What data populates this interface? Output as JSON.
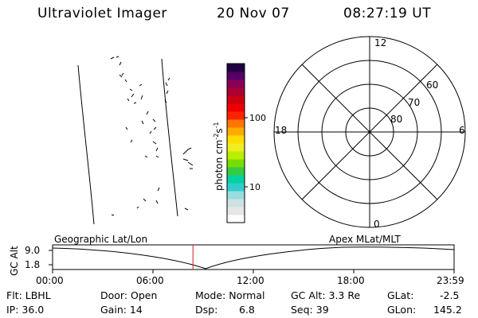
{
  "header": {
    "title": "Ultraviolet Imager",
    "date": "20 Nov 07",
    "time": "08:27:19 UT"
  },
  "colorbar": {
    "label_main": "photon cm",
    "label_exp1": "-2",
    "label_mid": "s",
    "label_exp2": "-1",
    "ticks": [
      "100",
      "10"
    ],
    "colors": [
      "#ffffff",
      "#e6e6e6",
      "#cfe0e0",
      "#99dddd",
      "#33cccc",
      "#00d2a0",
      "#33cc44",
      "#77dd00",
      "#bbee00",
      "#eeee22",
      "#ffdd00",
      "#ffaa00",
      "#ff7700",
      "#ff2200",
      "#ee0000",
      "#cc0011",
      "#aa0033",
      "#880055",
      "#550066",
      "#220044"
    ]
  },
  "polar_plot": {
    "mlt_labels": {
      "top": "12",
      "bottom": "0",
      "left": "18",
      "right": "6"
    },
    "lat_labels": [
      "60",
      "70",
      "80"
    ]
  },
  "timeline": {
    "y_axis_label": "GC Alt",
    "y_ticks": [
      "9.0",
      "1.8"
    ],
    "left_caption": "Geographic Lat/Lon",
    "right_caption": "Apex MLat/MLT",
    "x_ticks": [
      "00:00",
      "06:00",
      "12:00",
      "18:00",
      "23:59"
    ],
    "current_time_fraction": 0.3496
  },
  "status": {
    "flt": "Flt: LBHL",
    "ip": "IP: 36.0",
    "door": "Door: Open",
    "gain": "Gain: 14",
    "mode": "Mode: Normal",
    "dsp_label": "Dsp:",
    "dsp_value": "6.8",
    "gc_alt": "GC Alt: 3.3 Re",
    "seq": "Seq: 39",
    "glat_label": "GLat:",
    "glat_value": "-2.5",
    "glon_label": "GLon:",
    "glon_value": "145.2"
  }
}
